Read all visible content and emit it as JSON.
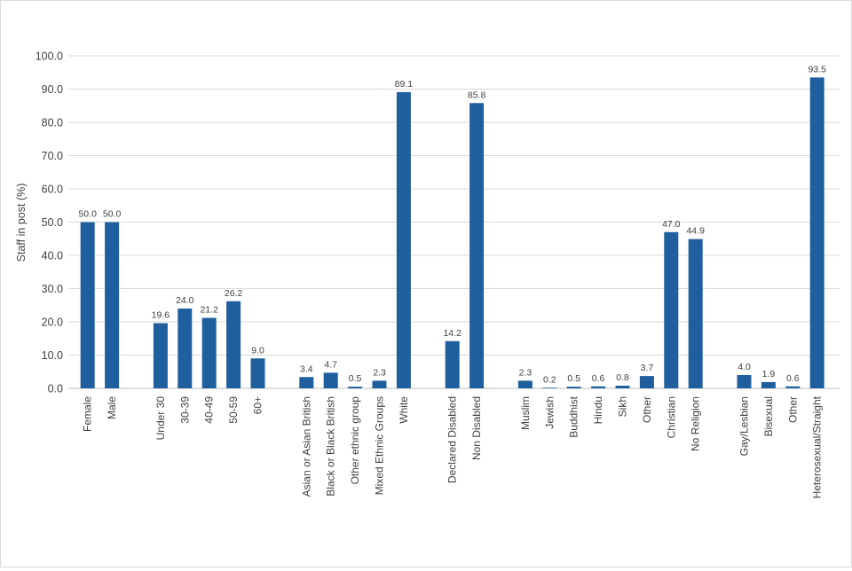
{
  "chart_data": {
    "type": "bar",
    "title": "",
    "xlabel": "",
    "ylabel": "Staff in post (%)",
    "ylim": [
      0,
      100
    ],
    "yticks": [
      "0.0",
      "10.0",
      "20.0",
      "30.0",
      "40.0",
      "50.0",
      "60.0",
      "70.0",
      "80.0",
      "90.0",
      "100.0"
    ],
    "grid": true,
    "legend": "none",
    "bar_color": "#1f5f9e",
    "grid_color": "#d9d9d9",
    "text_color": "#404040",
    "groups": [
      {
        "categories": [
          "Female",
          "Male"
        ],
        "values": [
          50.0,
          50.0
        ],
        "labels": [
          "50.0",
          "50.0"
        ]
      },
      {
        "categories": [
          "Under 30",
          "30-39",
          "40-49",
          "50-59",
          "60+"
        ],
        "values": [
          19.6,
          24.0,
          21.2,
          26.2,
          9.0
        ],
        "labels": [
          "19.6",
          "24.0",
          "21.2",
          "26.2",
          "9.0"
        ]
      },
      {
        "categories": [
          "Asian or Asian British",
          "Black or Black British",
          "Other ethnic group",
          "Mixed Ethnic Groups",
          "White"
        ],
        "values": [
          3.4,
          4.7,
          0.5,
          2.3,
          89.1
        ],
        "labels": [
          "3.4",
          "4.7",
          "0.5",
          "2.3",
          "89.1"
        ]
      },
      {
        "categories": [
          "Declared Disabled",
          "Non Disabled"
        ],
        "values": [
          14.2,
          85.8
        ],
        "labels": [
          "14.2",
          "85.8"
        ]
      },
      {
        "categories": [
          "Muslim",
          "Jewish",
          "Buddhist",
          "Hindu",
          "Sikh",
          "Other",
          "Christian",
          "No Religion"
        ],
        "values": [
          2.3,
          0.2,
          0.5,
          0.6,
          0.8,
          3.7,
          47.0,
          44.9
        ],
        "labels": [
          "2.3",
          "0.2",
          "0.5",
          "0.6",
          "0.8",
          "3.7",
          "47.0",
          "44.9"
        ]
      },
      {
        "categories": [
          "Gay/Lesbian",
          "Bisexual",
          "Other",
          "Heterosexual/Straight"
        ],
        "values": [
          4.0,
          1.9,
          0.6,
          93.5
        ],
        "labels": [
          "4.0",
          "1.9",
          "0.6",
          "93.5"
        ]
      }
    ]
  }
}
